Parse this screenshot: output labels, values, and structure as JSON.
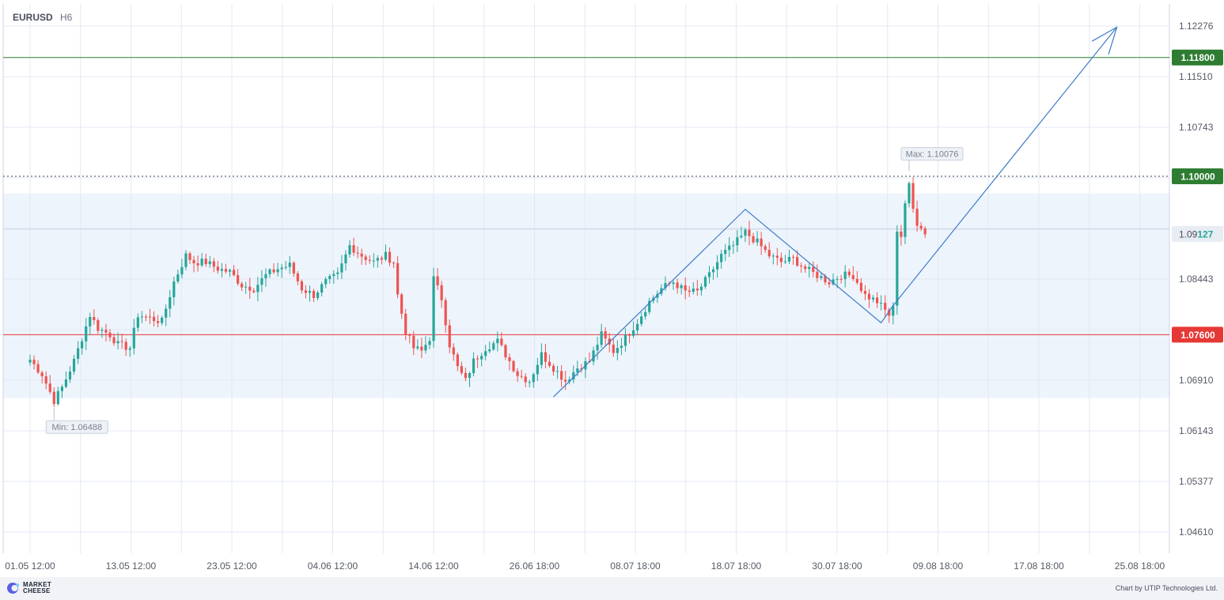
{
  "header": {
    "symbol": "EURUSD",
    "timeframe": "H6"
  },
  "footer": {
    "brand_line1": "MARKET",
    "brand_line2": "CHEESE",
    "credit": "Chart by UTIP Technologies Ltd."
  },
  "colors": {
    "up": "#26a69a",
    "down": "#ef5350",
    "grid": "#e3e8f4",
    "zone": "#eef4fc",
    "resistance": "#2e7d32",
    "support": "#e53935",
    "arrow": "#3d7cc9",
    "axis_text": "#555a66"
  },
  "chart_data": {
    "type": "candlestick",
    "title": "",
    "symbol": "EURUSD",
    "timeframe": "H6",
    "x_ticks": [
      "01.05 12:00",
      "13.05 12:00",
      "23.05 12:00",
      "04.06 12:00",
      "14.06 12:00",
      "26.06 18:00",
      "08.07 18:00",
      "18.07 18:00",
      "30.07 18:00",
      "09.08 18:00",
      "17.08 18:00",
      "25.08 18:00"
    ],
    "y_ticks": [
      1.12276,
      1.1151,
      1.10743,
      1.09976,
      1.0921,
      1.08443,
      1.07677,
      1.0691,
      1.06143,
      1.05377,
      1.0461
    ],
    "y_tick_labels": [
      "1.12276",
      "1.11510",
      "1.10743",
      "",
      "",
      "1.08443",
      "",
      "1.06910",
      "1.06143",
      "1.05377",
      "1.04610"
    ],
    "ylim": [
      1.042,
      1.127
    ],
    "grid": true,
    "price_lines": [
      {
        "label": "1.11800",
        "value": 1.118,
        "color": "#2e7d32",
        "style": "solid"
      },
      {
        "label": "1.10000",
        "value": 1.1,
        "color": "#2e7d32",
        "style": "dotted"
      },
      {
        "label": "1.07600",
        "value": 1.076,
        "color": "#e53935",
        "style": "solid"
      }
    ],
    "current_price": {
      "label_main": "1.09",
      "label_tail": "127",
      "value": 1.09127
    },
    "range_zone": {
      "from": 1.0664,
      "to": 1.0974
    },
    "annotations": [
      {
        "text": "Max: 1.10076",
        "x_index": 220,
        "value": 1.10076
      },
      {
        "text": "Min: 1.06488",
        "x_index": 6,
        "value": 1.06488
      }
    ],
    "trend_line": [
      {
        "x_index": 131,
        "value": 1.06658
      },
      {
        "x_index": 179,
        "value": 1.095
      },
      {
        "x_index": 213,
        "value": 1.0778
      },
      {
        "x_index": 216,
        "value": 1.0804
      }
    ],
    "projection_arrow": {
      "from_index": 216,
      "from_value": 1.0804,
      "to_index": 272,
      "to_value": 1.1226
    },
    "ohlc_anchors": [
      [
        0,
        1.0722
      ],
      [
        3,
        1.07
      ],
      [
        6,
        1.066
      ],
      [
        8,
        1.068
      ],
      [
        11,
        1.072
      ],
      [
        13,
        1.0755
      ],
      [
        15,
        1.079
      ],
      [
        17,
        1.077
      ],
      [
        20,
        1.076
      ],
      [
        22,
        1.0745
      ],
      [
        25,
        1.074
      ],
      [
        27,
        1.079
      ],
      [
        30,
        1.0785
      ],
      [
        33,
        1.078
      ],
      [
        36,
        1.084
      ],
      [
        39,
        1.088
      ],
      [
        41,
        1.087
      ],
      [
        44,
        1.087
      ],
      [
        47,
        1.086
      ],
      [
        50,
        1.0855
      ],
      [
        53,
        1.0835
      ],
      [
        56,
        1.083
      ],
      [
        59,
        1.085
      ],
      [
        62,
        1.086
      ],
      [
        65,
        1.0865
      ],
      [
        68,
        1.083
      ],
      [
        71,
        1.082
      ],
      [
        74,
        1.084
      ],
      [
        77,
        1.085
      ],
      [
        80,
        1.0895
      ],
      [
        83,
        1.088
      ],
      [
        86,
        1.087
      ],
      [
        89,
        1.088
      ],
      [
        91,
        1.087
      ],
      [
        92,
        1.082
      ],
      [
        94,
        1.0765
      ],
      [
        96,
        1.074
      ],
      [
        98,
        1.0735
      ],
      [
        100,
        1.0755
      ],
      [
        101,
        1.0845
      ],
      [
        103,
        1.0815
      ],
      [
        105,
        1.0745
      ],
      [
        107,
        1.071
      ],
      [
        109,
        1.069
      ],
      [
        111,
        1.072
      ],
      [
        114,
        1.074
      ],
      [
        117,
        1.075
      ],
      [
        120,
        1.072
      ],
      [
        122,
        1.07
      ],
      [
        125,
        1.069
      ],
      [
        128,
        1.073
      ],
      [
        131,
        1.071
      ],
      [
        134,
        1.069
      ],
      [
        137,
        1.071
      ],
      [
        140,
        1.072
      ],
      [
        143,
        1.076
      ],
      [
        146,
        1.0735
      ],
      [
        149,
        1.0755
      ],
      [
        152,
        1.078
      ],
      [
        155,
        1.081
      ],
      [
        158,
        1.083
      ],
      [
        161,
        1.084
      ],
      [
        164,
        1.0825
      ],
      [
        167,
        1.0825
      ],
      [
        170,
        1.085
      ],
      [
        173,
        1.088
      ],
      [
        176,
        1.0895
      ],
      [
        179,
        1.0915
      ],
      [
        182,
        1.09
      ],
      [
        185,
        1.088
      ],
      [
        188,
        1.087
      ],
      [
        191,
        1.0875
      ],
      [
        194,
        1.086
      ],
      [
        197,
        1.085
      ],
      [
        200,
        1.084
      ],
      [
        203,
        1.085
      ],
      [
        206,
        1.085
      ],
      [
        209,
        1.082
      ],
      [
        212,
        1.081
      ],
      [
        215,
        1.079
      ],
      [
        216,
        1.08
      ],
      [
        217,
        1.092
      ],
      [
        218,
        1.091
      ],
      [
        219,
        1.096
      ],
      [
        220,
        1.0985
      ],
      [
        221,
        1.095
      ],
      [
        222,
        1.093
      ],
      [
        223,
        1.0925
      ],
      [
        224,
        1.0912
      ]
    ]
  }
}
